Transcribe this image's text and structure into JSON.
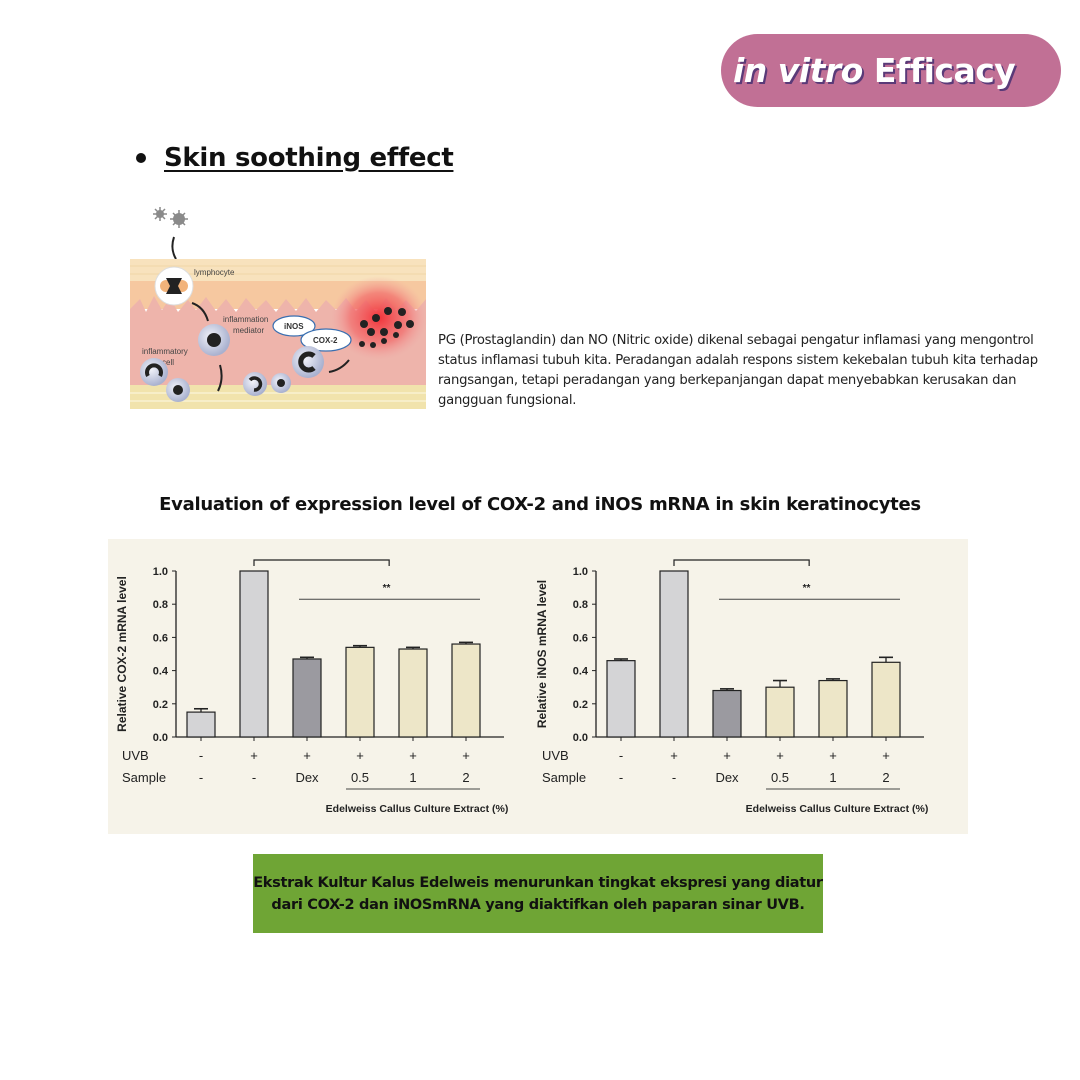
{
  "badge": {
    "italic": "in vitro",
    "rest": " Efficacy",
    "color": "#c17095"
  },
  "section": {
    "heading": "Skin soothing effect"
  },
  "illustration": {
    "labels": {
      "lymphocyte": "lymphocyte",
      "mediator_1": "inflammation",
      "mediator_2": "mediator",
      "cell_1": "inflammatory",
      "cell_2": "cell",
      "inos": "iNOS",
      "cox2": "COX-2"
    }
  },
  "description": "PG (Prostaglandin) dan NO (Nitric oxide) dikenal sebagai pengatur inflamasi yang mengontrol status inflamasi tubuh kita. Peradangan adalah respons sistem kekebalan tubuh kita terhadap rangsangan, tetapi peradangan yang berkepanjangan dapat menyebabkan kerusakan dan gangguan fungsional.",
  "chart_section_title": "Evaluation of expression level of COX-2 and iNOS mRNA in skin keratinocytes",
  "callout": {
    "line1": "Ekstrak Kultur Kalus Edelweis menurunkan tingkat ekspresi yang diatur",
    "line2": "dari COX-2 dan iNOSmRNA yang diaktifkan oleh paparan sinar UVB.",
    "color": "#6fa535"
  },
  "chart_data": [
    {
      "type": "bar",
      "title": "",
      "ylabel": "Relative COX-2 mRNA level",
      "xlabel": "Edelweiss Callus Culture Extract (%)",
      "ylim": [
        0,
        1.0
      ],
      "yticks": [
        "0.0",
        "0.2",
        "0.4",
        "0.6",
        "0.8",
        "1.0"
      ],
      "row_labels": [
        "UVB",
        "Sample"
      ],
      "uvb": [
        "-",
        "+",
        "+",
        "+",
        "+",
        "+"
      ],
      "sample": [
        "-",
        "-",
        "Dex",
        "0.5",
        "1",
        "2"
      ],
      "values": [
        0.15,
        1.0,
        0.47,
        0.54,
        0.53,
        0.56
      ],
      "errors": [
        0.02,
        0,
        0.01,
        0.01,
        0.01,
        0.01
      ],
      "colors": [
        "#d4d4d6",
        "#d4d4d6",
        "#9b9aa0",
        "#ede6c8",
        "#ede6c8",
        "#ede6c8"
      ],
      "significance": "**",
      "grid": false
    },
    {
      "type": "bar",
      "title": "",
      "ylabel": "Relative iNOS mRNA level",
      "xlabel": "Edelweiss Callus Culture Extract (%)",
      "ylim": [
        0,
        1.0
      ],
      "yticks": [
        "0.0",
        "0.2",
        "0.4",
        "0.6",
        "0.8",
        "1.0"
      ],
      "row_labels": [
        "UVB",
        "Sample"
      ],
      "uvb": [
        "-",
        "+",
        "+",
        "+",
        "+",
        "+"
      ],
      "sample": [
        "-",
        "-",
        "Dex",
        "0.5",
        "1",
        "2"
      ],
      "values": [
        0.46,
        1.0,
        0.28,
        0.3,
        0.34,
        0.45
      ],
      "errors": [
        0.01,
        0,
        0.01,
        0.04,
        0.01,
        0.03
      ],
      "colors": [
        "#d4d4d6",
        "#d4d4d6",
        "#9b9aa0",
        "#ede6c8",
        "#ede6c8",
        "#ede6c8"
      ],
      "significance": "**",
      "grid": false
    }
  ]
}
